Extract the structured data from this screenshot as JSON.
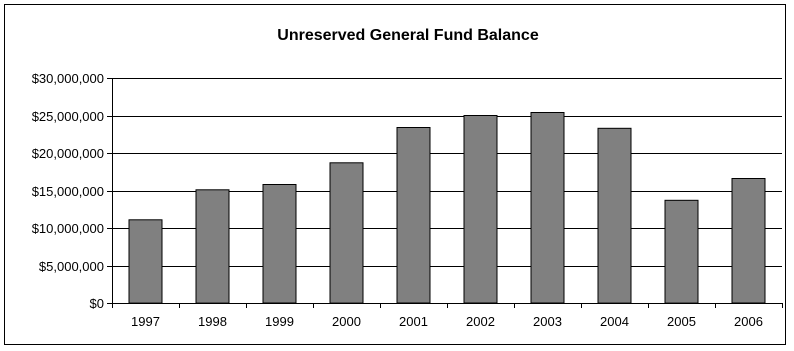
{
  "chart_data": {
    "type": "bar",
    "title": "Unreserved General Fund Balance",
    "xlabel": "",
    "ylabel": "",
    "categories": [
      "1997",
      "1998",
      "1999",
      "2000",
      "2001",
      "2002",
      "2003",
      "2004",
      "2005",
      "2006"
    ],
    "values": [
      11100000,
      15100000,
      15800000,
      18700000,
      23400000,
      25000000,
      25400000,
      23300000,
      13700000,
      16600000
    ],
    "ylim": [
      0,
      30000000
    ],
    "yticks": [
      0,
      5000000,
      10000000,
      15000000,
      20000000,
      25000000,
      30000000
    ],
    "ytick_labels": [
      "$0",
      "$5,000,000",
      "$10,000,000",
      "$15,000,000",
      "$20,000,000",
      "$25,000,000",
      "$30,000,000"
    ],
    "grid": true,
    "legend": "none",
    "bar_color": "#808080",
    "bar_edge_color": "#000000",
    "grid_color": "#000000"
  }
}
